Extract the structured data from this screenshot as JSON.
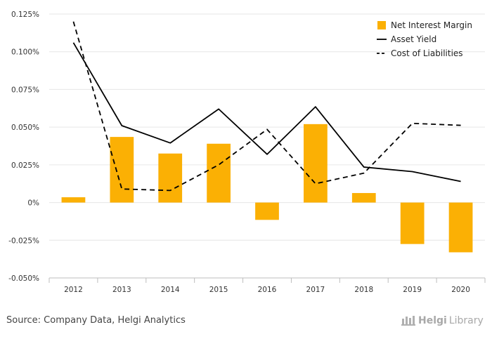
{
  "chart_data": {
    "type": "bar+line",
    "categories": [
      "2012",
      "2013",
      "2014",
      "2015",
      "2016",
      "2017",
      "2018",
      "2019",
      "2020"
    ],
    "series": [
      {
        "name": "Net Interest Margin",
        "kind": "bar",
        "color": "#FBB004",
        "values": [
          0.0035,
          0.0435,
          0.0325,
          0.039,
          -0.0115,
          0.052,
          0.0063,
          -0.0275,
          -0.033
        ]
      },
      {
        "name": "Asset Yield",
        "kind": "line",
        "style": "solid",
        "color": "#000000",
        "values": [
          0.106,
          0.051,
          0.0395,
          0.062,
          0.032,
          0.0635,
          0.0235,
          0.0205,
          0.014
        ]
      },
      {
        "name": "Cost of Liabilities",
        "kind": "line",
        "style": "dashed",
        "color": "#000000",
        "values": [
          0.12,
          0.009,
          0.008,
          0.025,
          0.0485,
          0.0125,
          0.0195,
          0.0525,
          0.0512
        ]
      }
    ],
    "y_ticks": [
      "0.125%",
      "0.100%",
      "0.075%",
      "0.050%",
      "0.025%",
      "0%",
      "-0.025%",
      "-0.050%"
    ],
    "ylim": [
      -0.05,
      0.125
    ],
    "grid": true,
    "legend_position": "top-right"
  },
  "footer": {
    "source": "Source: Company Data, Helgi Analytics"
  },
  "logo": {
    "part1": "Helgi",
    "part2": "Library"
  }
}
